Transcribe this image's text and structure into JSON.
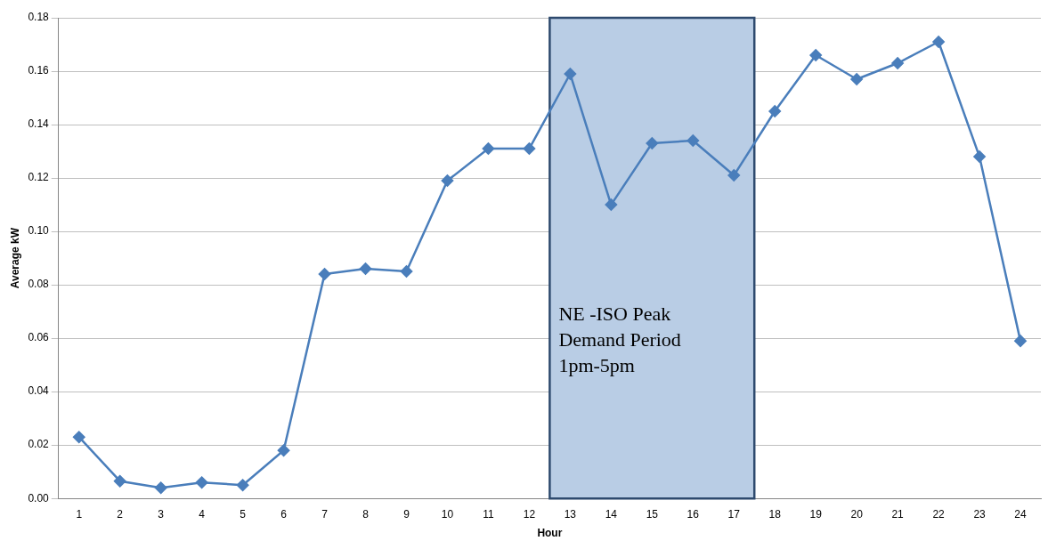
{
  "chart_data": {
    "type": "line",
    "xlabel": "Hour",
    "ylabel": "Average kW",
    "x": [
      1,
      2,
      3,
      4,
      5,
      6,
      7,
      8,
      9,
      10,
      11,
      12,
      13,
      14,
      15,
      16,
      17,
      18,
      19,
      20,
      21,
      22,
      23,
      24
    ],
    "series": [
      {
        "color": "#4a7ebb",
        "values": [
          0.023,
          0.0065,
          0.004,
          0.006,
          0.005,
          0.018,
          0.084,
          0.086,
          0.085,
          0.119,
          0.131,
          0.131,
          0.159,
          0.11,
          0.133,
          0.134,
          0.121,
          0.145,
          0.166,
          0.157,
          0.163,
          0.171,
          0.128,
          0.059
        ]
      }
    ],
    "xlim": [
      0.5,
      24.5
    ],
    "xticks": [
      1,
      2,
      3,
      4,
      5,
      6,
      7,
      8,
      9,
      10,
      11,
      12,
      13,
      14,
      15,
      16,
      17,
      18,
      19,
      20,
      21,
      22,
      23,
      24
    ],
    "ylim": [
      0,
      0.18
    ],
    "yticks": [
      {
        "value": 0,
        "label": "0.00"
      },
      {
        "value": 0.02,
        "label": "0.02"
      },
      {
        "value": 0.04,
        "label": "0.04"
      },
      {
        "value": 0.06,
        "label": "0.06"
      },
      {
        "value": 0.08,
        "label": "0.08"
      },
      {
        "value": 0.1,
        "label": "0.10"
      },
      {
        "value": 0.12,
        "label": "0.12"
      },
      {
        "value": 0.14,
        "label": "0.14"
      },
      {
        "value": 0.16,
        "label": "0.16"
      },
      {
        "value": 0.18,
        "label": "0.18"
      }
    ],
    "bands": [
      {
        "axis": "x",
        "from": 12.5,
        "to": 17.5,
        "label": "NE -ISO Peak\nDemand Period\n1pm-5pm",
        "color": "#b9cde5"
      }
    ],
    "grid": "y",
    "legend": false,
    "marker": "diamond",
    "line_style": "solid"
  }
}
